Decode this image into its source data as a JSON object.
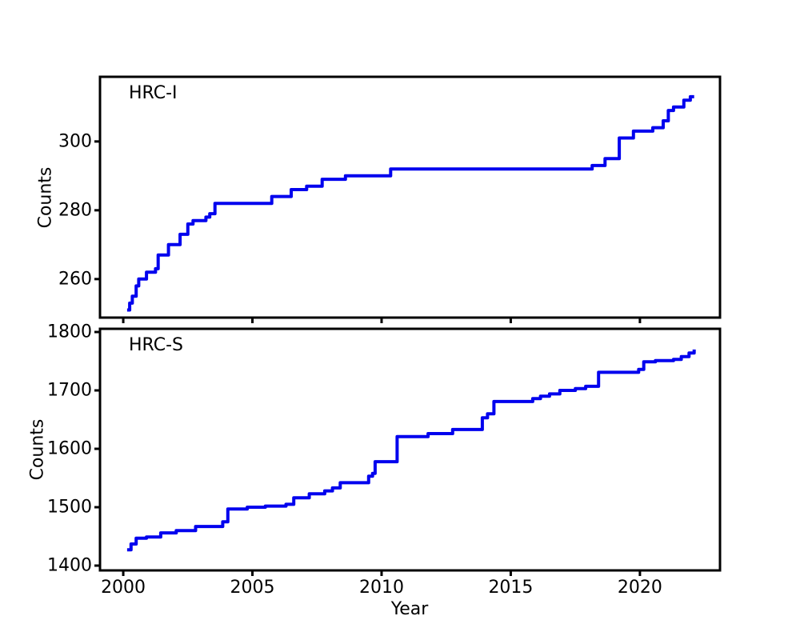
{
  "figure": {
    "background": "#ffffff",
    "axis_color": "#000000",
    "line_color": "#0202ee"
  },
  "chart_data": [
    {
      "type": "line",
      "drawstyle": "steps-post",
      "label": "HRC-I",
      "ylabel": "Counts",
      "xlabel": "",
      "grid": false,
      "legend_position": "none",
      "xlim": [
        1999.1,
        2023.1
      ],
      "ylim": [
        248.8,
        318.8
      ],
      "xticks": [
        2000,
        2005,
        2010,
        2015,
        2020
      ],
      "yticks": [
        260,
        280,
        300
      ],
      "show_xtick_labels": false,
      "series": [
        {
          "name": "HRC-I cumulative counts",
          "x": [
            2000.15,
            2000.25,
            2000.35,
            2000.5,
            2000.6,
            2000.9,
            2001.25,
            2001.35,
            2001.75,
            2002.2,
            2002.5,
            2002.7,
            2003.2,
            2003.35,
            2003.55,
            2005.75,
            2006.5,
            2007.1,
            2007.7,
            2008.6,
            2010.35,
            2018.15,
            2018.65,
            2019.2,
            2019.75,
            2020.5,
            2020.9,
            2021.1,
            2021.3,
            2021.7,
            2021.95,
            2022.1
          ],
          "y": [
            251,
            253,
            255,
            258,
            260,
            262,
            263,
            267,
            270,
            273,
            276,
            277,
            278,
            279,
            282,
            284,
            286,
            287,
            289,
            290,
            292,
            293,
            295,
            301,
            303,
            304,
            306,
            309,
            310,
            312,
            313,
            313
          ]
        }
      ]
    },
    {
      "type": "line",
      "drawstyle": "steps-post",
      "label": "HRC-S",
      "ylabel": "Counts",
      "xlabel": "Year",
      "grid": false,
      "legend_position": "none",
      "xlim": [
        1999.1,
        2023.1
      ],
      "ylim": [
        1391.8,
        1805.5
      ],
      "xticks": [
        2000,
        2005,
        2010,
        2015,
        2020
      ],
      "yticks": [
        1400,
        1500,
        1600,
        1700,
        1800
      ],
      "show_xtick_labels": true,
      "series": [
        {
          "name": "HRC-S cumulative counts",
          "x": [
            2000.15,
            2000.3,
            2000.5,
            2000.9,
            2001.45,
            2002.05,
            2002.8,
            2003.85,
            2004.05,
            2004.8,
            2005.5,
            2006.3,
            2006.6,
            2007.2,
            2007.8,
            2008.1,
            2008.4,
            2009.5,
            2009.65,
            2009.75,
            2010.6,
            2011.8,
            2012.75,
            2013.9,
            2014.1,
            2014.35,
            2015.85,
            2016.15,
            2016.5,
            2016.9,
            2017.5,
            2017.9,
            2018.4,
            2019.95,
            2020.15,
            2020.6,
            2021.3,
            2021.6,
            2021.9,
            2022.1
          ],
          "y": [
            1427,
            1437,
            1447,
            1449,
            1456,
            1460,
            1467,
            1475,
            1497,
            1500,
            1502,
            1505,
            1516,
            1523,
            1528,
            1533,
            1542,
            1553,
            1558,
            1578,
            1621,
            1626,
            1633,
            1653,
            1660,
            1681,
            1686,
            1690,
            1694,
            1700,
            1703,
            1707,
            1731,
            1736,
            1749,
            1751,
            1753,
            1758,
            1764,
            1770
          ]
        }
      ]
    }
  ]
}
